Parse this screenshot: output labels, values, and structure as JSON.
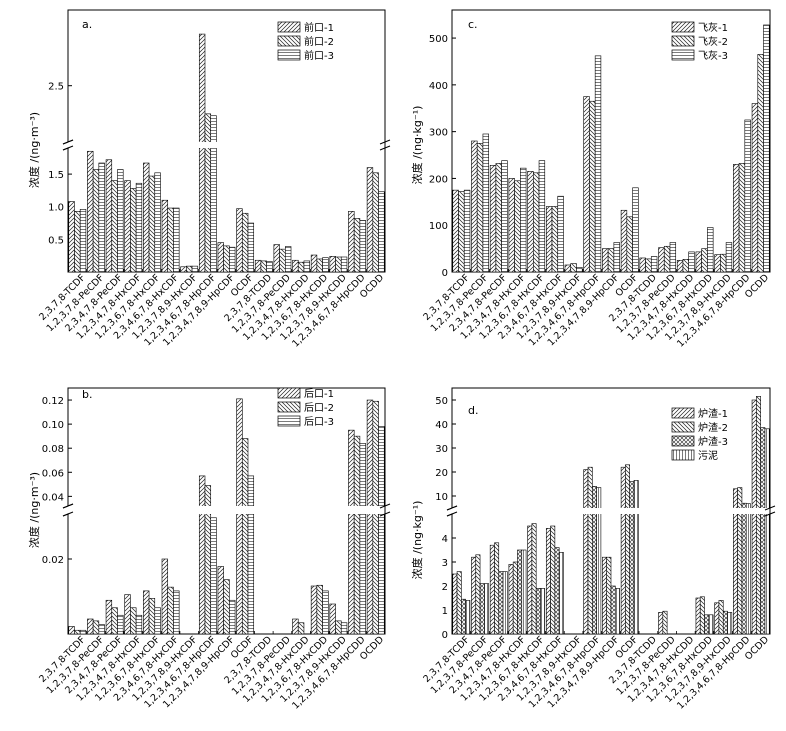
{
  "categories": [
    "2,3,7,8-TCDF",
    "1,2,3,7,8-PeCDF",
    "2,3,4,7,8-PeCDF",
    "1,2,3,4,7,8-HxCDF",
    "1,2,3,6,7,8-HxCDF",
    "2,3,4,6,7,8-HxCDF",
    "1,2,3,7,8,9-HxCDF",
    "1,2,3,4,6,7,8-HpCDF",
    "1,2,3,4,7,8,9-HpCDF",
    "OCDF",
    "2,3,7,8-TCDD",
    "1,2,3,7,8-PeCDD",
    "1,2,3,4,7,8-HxCDD",
    "1,2,3,6,7,8-HxCDD",
    "1,2,3,7,8,9-HxCDD",
    "1,2,3,4,6,7,8-HpCDD",
    "OCDD"
  ],
  "categories_cd": [
    "2,3,7,8-TCDF",
    "1,2,3,7,8-PeCDF",
    "2,3,4,7,8-PeCDF",
    "1,2,3,4,7,8-HxCDF",
    "1,2,3,6,7,8-HxCDF",
    "2,3,4,6,7,8-HxCDF",
    "1,2,3,7,8,9-HxCDF",
    "1,2,3,4,6,7,8-HpCDF",
    "1,2,3,4,7,8,9-HpCDF",
    "OCDF",
    "2,3,7,8-TCDD",
    "1,2,3,7,8-PeCDD",
    "1,2,3,4,7,8-HxCDD",
    "1,2,3,6,7,8-HxCDD",
    "1,2,3,7,8,9-HxCDD",
    "1,2,3,4,6,7,8-HpCDD",
    "OCDD"
  ],
  "chart_data": [
    {
      "panel": "a.",
      "type": "bar",
      "ylabel": "浓度 /(ng·m⁻³)",
      "broken_axis": {
        "lower": [
          0,
          1.9
        ],
        "upper": [
          1.9,
          3.2
        ]
      },
      "yticks_lower": [
        "0.5",
        "1.0",
        "1.5"
      ],
      "yticks_upper": [
        "2.5"
      ],
      "series": [
        {
          "name": "前口-1",
          "pattern": "diag-fwd",
          "values": [
            1.08,
            1.85,
            1.72,
            1.4,
            1.67,
            1.1,
            0.08,
            3.05,
            0.45,
            0.97,
            0.18,
            0.42,
            0.18,
            0.26,
            0.24,
            0.93,
            1.6
          ]
        },
        {
          "name": "前口-2",
          "pattern": "diag-back",
          "values": [
            0.93,
            1.57,
            1.4,
            1.28,
            1.47,
            0.98,
            0.09,
            2.2,
            0.4,
            0.9,
            0.17,
            0.35,
            0.15,
            0.2,
            0.23,
            0.82,
            1.52
          ]
        },
        {
          "name": "前口-3",
          "pattern": "horiz",
          "values": [
            0.96,
            1.67,
            1.57,
            1.36,
            1.52,
            0.98,
            0.09,
            2.18,
            0.38,
            0.75,
            0.16,
            0.39,
            0.17,
            0.22,
            0.23,
            0.79,
            1.23
          ]
        }
      ]
    },
    {
      "panel": "b.",
      "type": "bar",
      "ylabel": "浓度 /(ng·m⁻³)",
      "broken_axis": {
        "lower": [
          0,
          0.032
        ],
        "upper": [
          0.032,
          0.13
        ]
      },
      "yticks_lower": [
        "0.02"
      ],
      "yticks_upper": [
        "0.04",
        "0.06",
        "0.08",
        "0.10",
        "0.12"
      ],
      "series": [
        {
          "name": "后口-1",
          "pattern": "diag-fwd",
          "values": [
            0.002,
            0.004,
            0.009,
            0.0105,
            0.0115,
            0.02,
            0.0,
            0.057,
            0.018,
            0.121,
            0.0,
            0.0,
            0.004,
            0.0128,
            0.008,
            0.095,
            0.12
          ]
        },
        {
          "name": "后口-2",
          "pattern": "diag-back",
          "values": [
            0.001,
            0.0035,
            0.007,
            0.007,
            0.0095,
            0.0125,
            0.0,
            0.049,
            0.0145,
            0.088,
            0.0,
            0.0,
            0.003,
            0.013,
            0.0035,
            0.09,
            0.119
          ]
        },
        {
          "name": "后口-3",
          "pattern": "horiz",
          "values": [
            0.001,
            0.0025,
            0.005,
            0.005,
            0.007,
            0.0115,
            0.0,
            0.031,
            0.009,
            0.057,
            0.0,
            0.0,
            0.0,
            0.0115,
            0.003,
            0.084,
            0.098
          ]
        }
      ]
    },
    {
      "panel": "c.",
      "type": "bar",
      "ylabel": "浓度 /(ng·kg⁻¹)",
      "ylim": [
        0,
        560
      ],
      "yticks": [
        "0",
        "100",
        "200",
        "300",
        "400",
        "500"
      ],
      "series": [
        {
          "name": "飞灰-1",
          "pattern": "diag-fwd",
          "values": [
            175,
            280,
            228,
            200,
            215,
            140,
            15,
            375,
            50,
            132,
            30,
            52,
            25,
            43,
            37,
            230,
            360
          ]
        },
        {
          "name": "飞灰-2",
          "pattern": "diag-back",
          "values": [
            172,
            275,
            232,
            195,
            212,
            140,
            18,
            365,
            50,
            118,
            28,
            55,
            27,
            50,
            38,
            232,
            465
          ]
        },
        {
          "name": "飞灰-3",
          "pattern": "horiz",
          "values": [
            175,
            295,
            238,
            222,
            238,
            162,
            10,
            462,
            63,
            180,
            33,
            63,
            43,
            95,
            63,
            325,
            528
          ]
        }
      ]
    },
    {
      "panel": "d.",
      "type": "bar",
      "ylabel": "浓度 /(ng·kg⁻¹)",
      "broken_axis": {
        "lower": [
          0,
          5
        ],
        "upper": [
          5,
          55
        ]
      },
      "yticks_lower": [
        "0",
        "1",
        "2",
        "3",
        "4"
      ],
      "yticks_upper": [
        "10",
        "20",
        "30",
        "40",
        "50"
      ],
      "series": [
        {
          "name": "炉渣-1",
          "pattern": "diag-fwd",
          "values": [
            2.5,
            3.2,
            3.7,
            2.9,
            4.5,
            4.4,
            0,
            21.0,
            3.2,
            22.0,
            0,
            0.9,
            0,
            1.5,
            1.3,
            13.0,
            50.0
          ]
        },
        {
          "name": "炉渣-2",
          "pattern": "diag-back",
          "values": [
            2.6,
            3.3,
            3.8,
            3.0,
            4.6,
            4.5,
            0,
            22.0,
            3.2,
            23.0,
            0,
            0.95,
            0,
            1.55,
            1.4,
            13.5,
            51.5
          ]
        },
        {
          "name": "炉渣-3",
          "pattern": "cross",
          "values": [
            1.45,
            2.1,
            2.6,
            3.5,
            1.9,
            3.6,
            0,
            14.0,
            2.0,
            16.0,
            0,
            0,
            0,
            0.8,
            0.95,
            7.0,
            38.5
          ]
        },
        {
          "name": "污泥",
          "pattern": "vert",
          "values": [
            1.4,
            2.1,
            2.6,
            3.5,
            1.9,
            3.4,
            0,
            13.5,
            1.9,
            16.5,
            0,
            0,
            0,
            0.8,
            0.9,
            6.8,
            38.0
          ]
        }
      ]
    }
  ]
}
